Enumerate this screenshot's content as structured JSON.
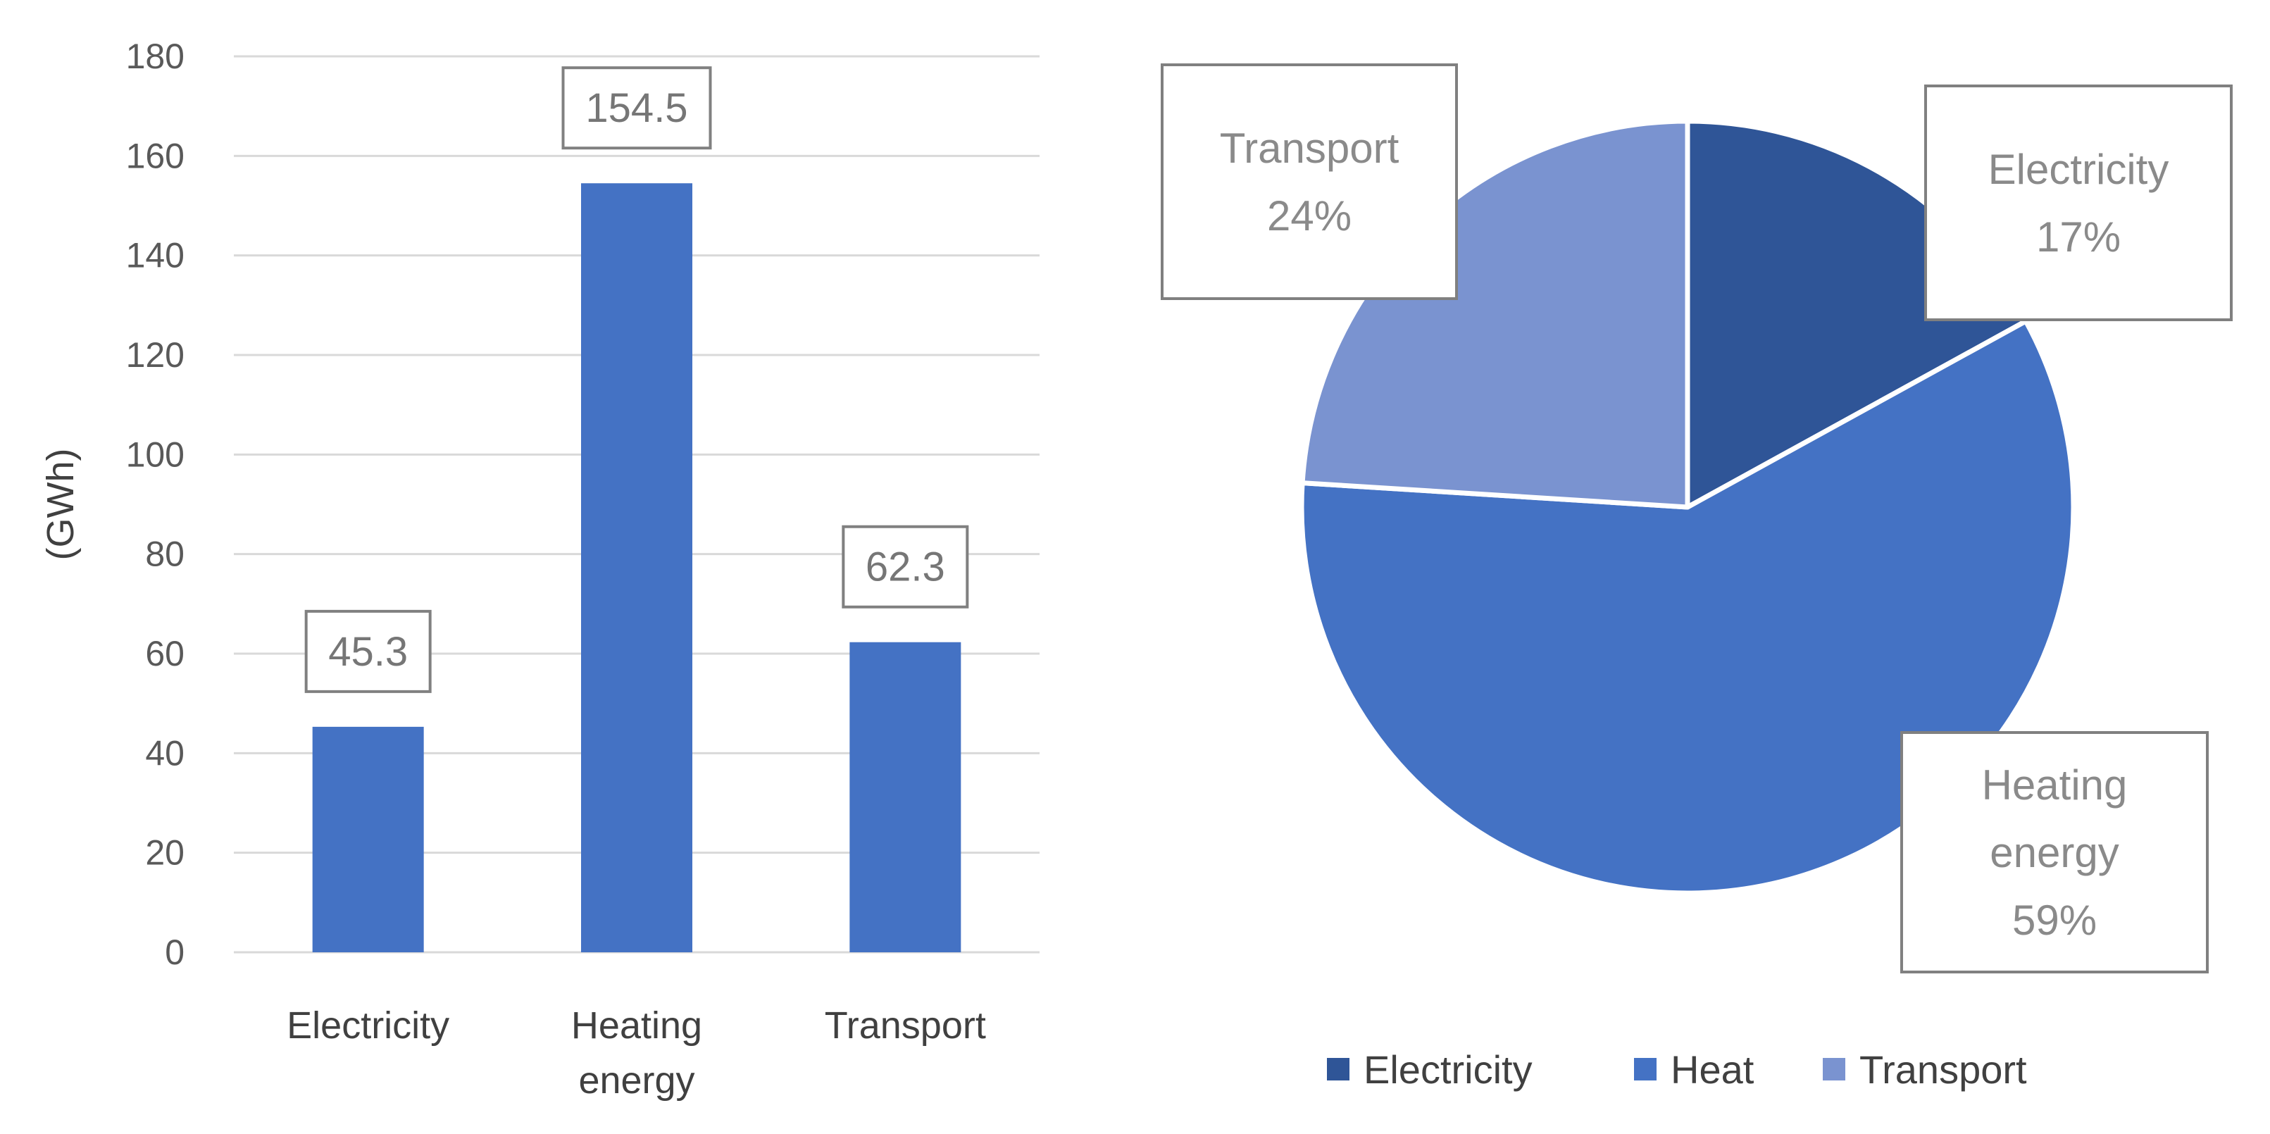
{
  "chart_data": [
    {
      "type": "bar",
      "ylabel": "(GWh)",
      "ylim": [
        0,
        180
      ],
      "ytick_step": 20,
      "yticks": [
        "0",
        "20",
        "40",
        "60",
        "80",
        "100",
        "120",
        "140",
        "160",
        "180"
      ],
      "grid": true,
      "categories": [
        [
          "Electricity"
        ],
        [
          "Heating",
          "energy"
        ],
        [
          "Transport"
        ]
      ],
      "values": [
        45.3,
        154.5,
        62.3
      ],
      "data_labels": [
        "45.3",
        "154.5",
        "62.3"
      ],
      "bar_color": "#4472C4"
    },
    {
      "type": "pie",
      "slices": [
        {
          "name": "Electricity",
          "value": 17,
          "label_lines": [
            "Electricity",
            "17%"
          ],
          "color": "#2F5597"
        },
        {
          "name": "Heat",
          "value": 59,
          "label_lines": [
            "Heating",
            "energy",
            "59%"
          ],
          "color": "#4472C4"
        },
        {
          "name": "Transport",
          "value": 24,
          "label_lines": [
            "Transport",
            "24%"
          ],
          "color": "#7A93D0"
        }
      ],
      "legend": {
        "placement": "bottom",
        "entries": [
          "Electricity",
          "Heat",
          "Transport"
        ]
      }
    }
  ]
}
